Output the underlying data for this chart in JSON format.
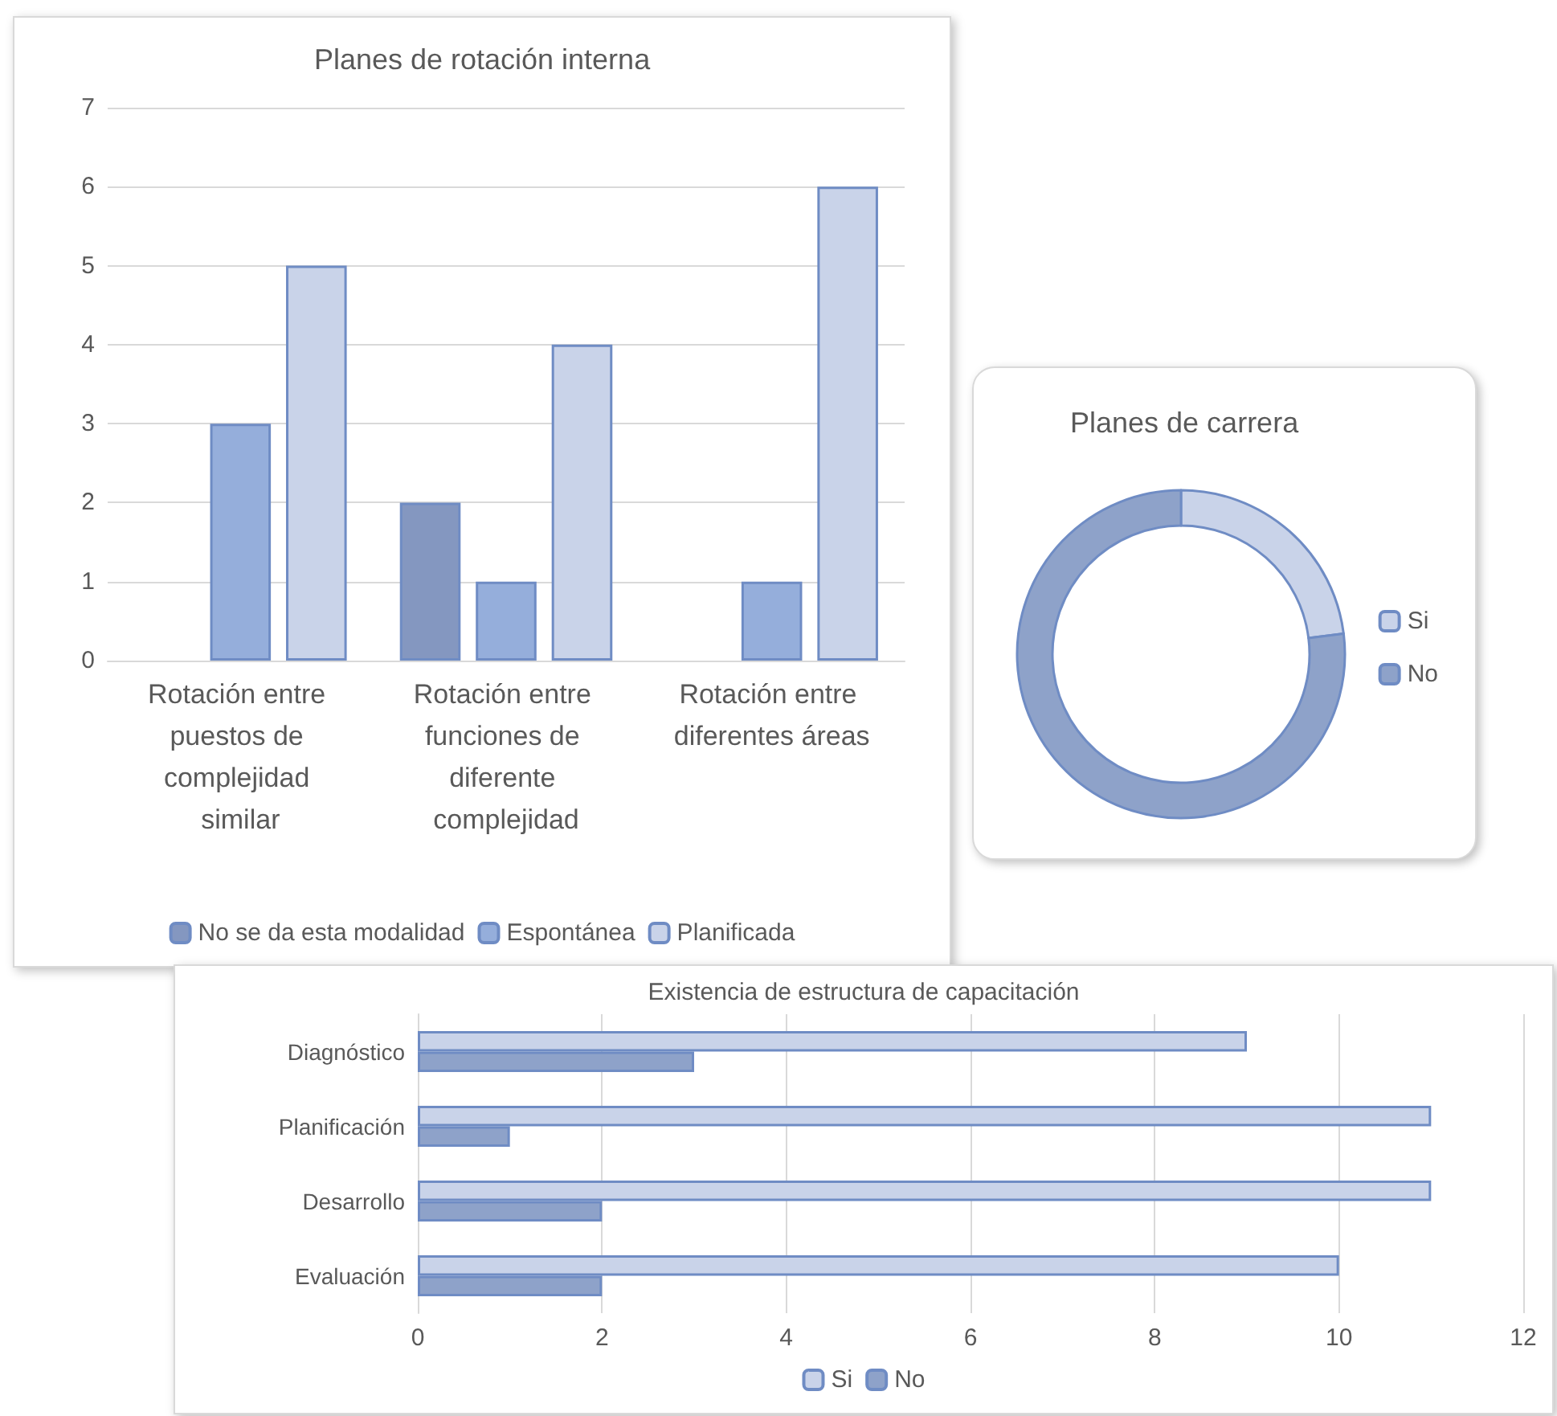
{
  "chart_data": [
    {
      "type": "bar",
      "title": "Planes de rotación interna",
      "categories": [
        "Rotación entre puestos de complejidad similar",
        "Rotación entre funciones de diferente complejidad",
        "Rotación entre diferentes áreas"
      ],
      "series": [
        {
          "name": "No se da esta modalidad",
          "color": "#8497c0",
          "values": [
            0,
            2,
            0
          ]
        },
        {
          "name": "Espontánea",
          "color": "#95aedb",
          "values": [
            3,
            1,
            1
          ]
        },
        {
          "name": "Planificada",
          "color": "#c9d3e9",
          "values": [
            5,
            4,
            6
          ]
        }
      ],
      "ylim": [
        0,
        7
      ],
      "yticks": [
        0,
        1,
        2,
        3,
        4,
        5,
        6,
        7
      ],
      "grid": "y",
      "legend": "bottom"
    },
    {
      "type": "donut",
      "title": "Planes de carrera",
      "categories": [
        "Si",
        "No"
      ],
      "values": [
        23,
        77
      ],
      "colors": [
        "#c9d3e9",
        "#8ea2c9"
      ],
      "legend": "right"
    },
    {
      "type": "bar",
      "orientation": "horizontal",
      "title": "Existencia de estructura de capacitación",
      "categories": [
        "Diagnóstico",
        "Planificación",
        "Desarrollo",
        "Evaluación"
      ],
      "series": [
        {
          "name": "Si",
          "color": "#c9d3e9",
          "values": [
            9,
            11,
            11,
            10
          ]
        },
        {
          "name": "No",
          "color": "#8ea2c9",
          "values": [
            3,
            1,
            2,
            2
          ]
        }
      ],
      "xlim": [
        0,
        12
      ],
      "xticks": [
        0,
        2,
        4,
        6,
        8,
        10,
        12
      ],
      "grid": "x",
      "legend": "bottom"
    }
  ]
}
